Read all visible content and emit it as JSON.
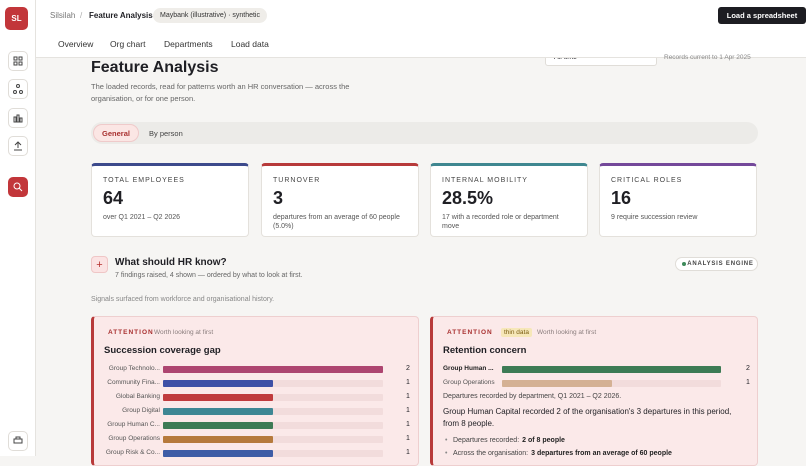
{
  "sidebar": {
    "avatar": "SL"
  },
  "header": {
    "breadcrumb": [
      "Silsilah",
      "Feature Analysis"
    ],
    "badge": "Maybank (illustrative) · synthetic",
    "button": "Load a spreadsheet"
  },
  "nav": [
    "Overview",
    "Org chart",
    "Departments",
    "Load data"
  ],
  "filter": {
    "period": "All time",
    "note": "Records current to 1 Apr 2025"
  },
  "page": {
    "title": "Feature Analysis",
    "subtitle": "The loaded records, read for patterns worth an HR conversation — across the organisation, or for one person."
  },
  "tabs": [
    "General",
    "By person"
  ],
  "kpis": [
    {
      "label": "TOTAL EMPLOYEES",
      "value": "64",
      "note": "over Q1 2021 – Q2 2026",
      "color": "#3d4a8c"
    },
    {
      "label": "TURNOVER",
      "value": "3",
      "note": "departures from an average of 60 people (5.0%)",
      "color": "#b73a3a"
    },
    {
      "label": "INTERNAL MOBILITY",
      "value": "28.5%",
      "note": "17 with a recorded role or department move",
      "color": "#3f8790"
    },
    {
      "label": "CRITICAL ROLES",
      "value": "16",
      "note": "9 require succession review",
      "color": "#74489a"
    }
  ],
  "findings_section": {
    "title": "What should HR know?",
    "summary": "7 findings raised, 4 shown — ordered by what to look at first.",
    "badge": "ANALYSIS ENGINE",
    "intro": "Signals surfaced from workforce and organisational history."
  },
  "findings": [
    {
      "tag": "ATTENTION",
      "priority": "Worth looking at first",
      "title": "Succession coverage gap",
      "rows": [
        {
          "label": "Group Technolo...",
          "value": 2,
          "color": "#ad4570"
        },
        {
          "label": "Community Fina...",
          "value": 1,
          "color": "#3e50a6"
        },
        {
          "label": "Global Banking",
          "value": 1,
          "color": "#c03b3d"
        },
        {
          "label": "Group Digital",
          "value": 1,
          "color": "#3e8794"
        },
        {
          "label": "Group Human C...",
          "value": 1,
          "color": "#3d7b55"
        },
        {
          "label": "Group Operations",
          "value": 1,
          "color": "#b67a3c"
        },
        {
          "label": "Group Risk & Co...",
          "value": 1,
          "color": "#3e5ca6"
        }
      ]
    },
    {
      "tag": "ATTENTION",
      "flag": "thin data",
      "priority": "Worth looking at first",
      "title": "Retention concern",
      "rows": [
        {
          "label": "Group Human ...",
          "value": 2,
          "color": "#3d7b55"
        },
        {
          "label": "Group Operations",
          "value": 1,
          "color": "#d4b194"
        }
      ],
      "caption": "Departures recorded by department, Q1 2021 – Q2 2026.",
      "text": "Group Human Capital recorded 2 of the organisation's 3 departures in this period, from 8 people.",
      "bullets": [
        {
          "label": "Departures recorded:",
          "strong": "2 of 8 people"
        },
        {
          "label": "Across the organisation:",
          "strong": "3 departures from an average of 60 people"
        }
      ]
    }
  ]
}
